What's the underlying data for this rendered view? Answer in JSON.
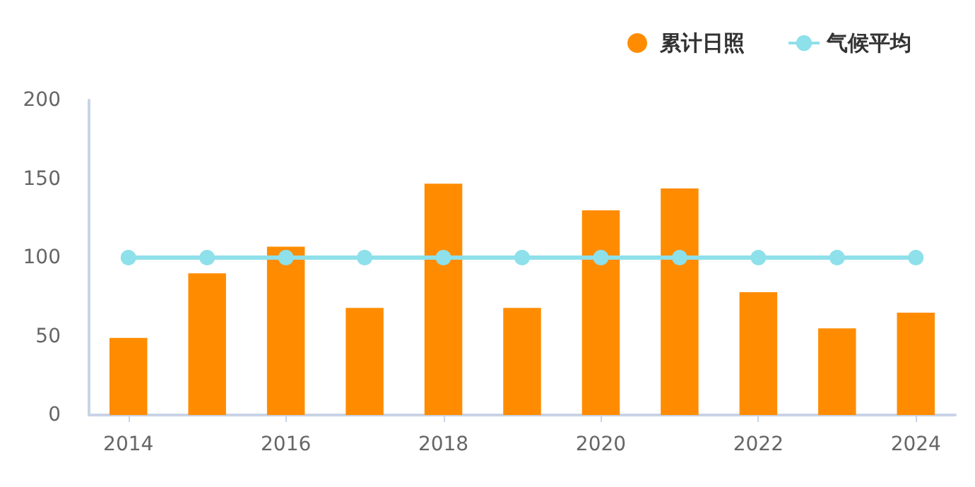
{
  "chart_data": {
    "type": "bar",
    "categories": [
      "2014",
      null,
      "2016",
      null,
      "2018",
      null,
      "2020",
      null,
      "2022",
      null,
      "2024"
    ],
    "series": [
      {
        "name": "累计日照",
        "color": "#ff8c00",
        "values": [
          49,
          90,
          107,
          68,
          147,
          68,
          130,
          144,
          78,
          55,
          65
        ]
      },
      {
        "name": "气候平均",
        "type": "line",
        "color": "#8ee0ea",
        "values": [
          100,
          100,
          100,
          100,
          100,
          100,
          100,
          100,
          100,
          100,
          100
        ]
      }
    ],
    "ylim": [
      0,
      200
    ],
    "yticks": [
      0,
      50,
      100,
      150,
      200
    ],
    "grid": false,
    "legend": "top right",
    "marker": "circle",
    "line_style": "solid"
  }
}
